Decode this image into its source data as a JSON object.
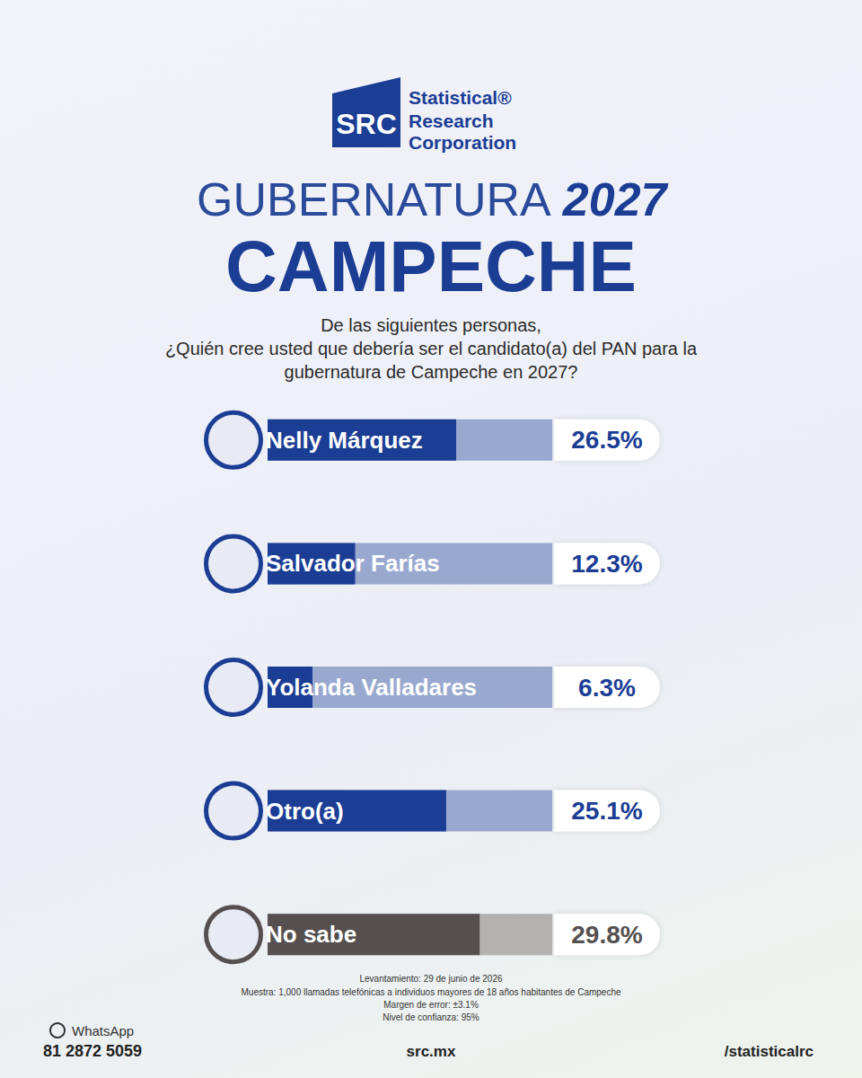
{
  "header": {
    "logo": "SRC",
    "company": [
      "Statistical®",
      "Research",
      "Corporation"
    ]
  },
  "chart_data": {
    "type": "bar",
    "orientation": "horizontal",
    "title": "GUBERNATURA 2027",
    "subtitle": "CAMPECHE",
    "question": [
      "De las siguientes personas,",
      "¿Quién cree usted que debería ser el candidato(a) del PAN para la",
      "gubernatura de Campeche en 2027?"
    ],
    "categories": [
      "Nelly Márquez",
      "Salvador Farías",
      "Yolanda Valladares",
      "Otro(a)",
      "No sabe"
    ],
    "values": [
      26.5,
      12.3,
      6.3,
      25.1,
      29.8
    ],
    "value_labels": [
      "26.5%",
      "12.3%",
      "6.3%",
      "25.1%",
      "29.8%"
    ],
    "colors": [
      "#1b3d94",
      "#1b3d94",
      "#1b3d94",
      "#1b3d94",
      "#55504f"
    ],
    "xlim": [
      0,
      40
    ],
    "tick_labels": false,
    "data_labels": true,
    "grid": false
  },
  "footer": {
    "notes": [
      "Levantamiento: 29 de junio de 2026",
      "Muestra: 1,000 llamadas telefónicas a individuos mayores de 18 años habitantes de Campeche",
      "Margen de error: ±3.1%",
      "Nivel de confianza: 95%"
    ],
    "whatsapp_label": "WhatsApp",
    "phone": "81 2872 5059",
    "website": "src.mx",
    "social": "/statisticalrc"
  }
}
